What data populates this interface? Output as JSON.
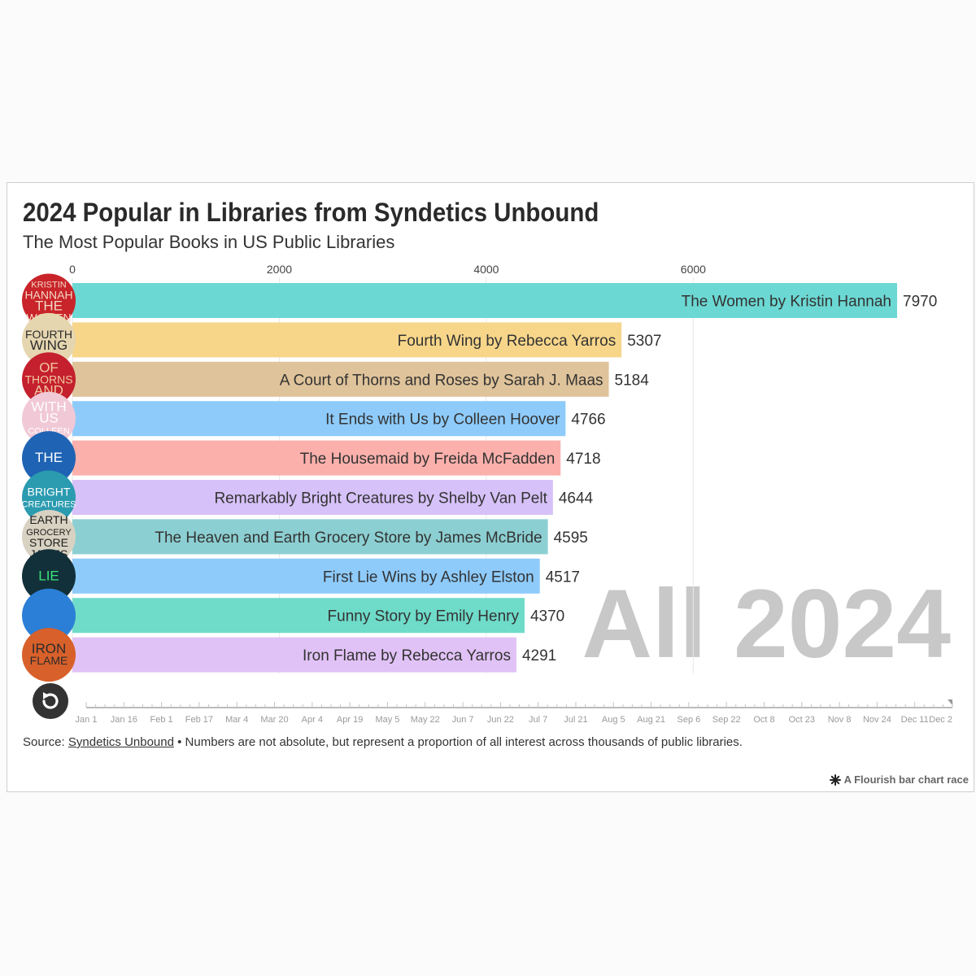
{
  "chart_data": {
    "type": "bar",
    "title": "2024 Popular in Libraries from Syndetics Unbound",
    "subtitle": "The Most Popular Books in US Public Libraries",
    "period_label": "All 2024",
    "x_ticks": [
      0,
      2000,
      4000,
      6000
    ],
    "xlim": [
      0,
      8300
    ],
    "grid": true,
    "categories": [
      "The Women by Kristin Hannah",
      "Fourth Wing by Rebecca Yarros",
      "A Court of Thorns and Roses by Sarah J. Maas",
      "It Ends with Us by Colleen Hoover",
      "The Housemaid by Freida McFadden",
      "Remarkably Bright Creatures by Shelby Van Pelt",
      "The Heaven and Earth Grocery Store by James McBride",
      "First Lie Wins by Ashley Elston",
      "Funny Story by Emily Henry",
      "Iron Flame by Rebecca Yarros"
    ],
    "values": [
      7970,
      5307,
      5184,
      4766,
      4718,
      4644,
      4595,
      4517,
      4370,
      4291
    ],
    "colors": [
      "#6cd8d3",
      "#f7d68a",
      "#dfc39a",
      "#8ecbfb",
      "#fbb0ac",
      "#d6c1f8",
      "#8ccfd2",
      "#8ecbfb",
      "#6fdbc9",
      "#e1c2f6"
    ],
    "covers": [
      {
        "text": [
          "KRISTIN",
          "HANNAH",
          "THE",
          "WOMEN"
        ],
        "bg": "#c8242a",
        "fg": "#f4d9c4"
      },
      {
        "text": [
          "FOURTH",
          "WING"
        ],
        "bg": "#e6d6b0",
        "fg": "#2b2b2b"
      },
      {
        "text": [
          "OF",
          "THORNS",
          "AND"
        ],
        "bg": "#c4202e",
        "fg": "#f2c7a0"
      },
      {
        "text": [
          "WITH",
          "US",
          "COLLEEN"
        ],
        "bg": "#f1c9d6",
        "fg": "#ffffff"
      },
      {
        "text": [
          "THE"
        ],
        "bg": "#1f63b4",
        "fg": "#ffffff"
      },
      {
        "text": [
          "BRIGHT",
          "CREATURES"
        ],
        "bg": "#2b9bb0",
        "fg": "#ffffff"
      },
      {
        "text": [
          "EARTH",
          "GROCERY",
          "STORE",
          "JAMES"
        ],
        "bg": "#d8d2c2",
        "fg": "#1e1e1e"
      },
      {
        "text": [
          "LIE"
        ],
        "bg": "#12303a",
        "fg": "#3be27a"
      },
      {
        "text": [],
        "bg": "#2b7fd6",
        "fg": "#ffffff"
      },
      {
        "text": [
          "IRON",
          "FLAME"
        ],
        "bg": "#d8602a",
        "fg": "#2b2b2b"
      }
    ],
    "timeline": [
      "Jan 1",
      "Jan 16",
      "Feb 1",
      "Feb 17",
      "Mar 4",
      "Mar 20",
      "Apr 4",
      "Apr 19",
      "May 5",
      "May 22",
      "Jun 7",
      "Jun 22",
      "Jul 7",
      "Jul 21",
      "Aug 5",
      "Aug 21",
      "Sep 6",
      "Sep 22",
      "Oct 8",
      "Oct 23",
      "Nov 8",
      "Nov 24",
      "Dec 11",
      "Dec 2"
    ]
  },
  "footer": {
    "source_prefix": "Source: ",
    "source_link": "Syndetics Unbound",
    "source_note": " • Numbers are not absolute, but represent a proportion of all interest across thousands of public libraries.",
    "credit": "A Flourish bar chart race"
  },
  "icons": {
    "replay": "replay-icon",
    "credit": "flourish-logo-icon"
  }
}
